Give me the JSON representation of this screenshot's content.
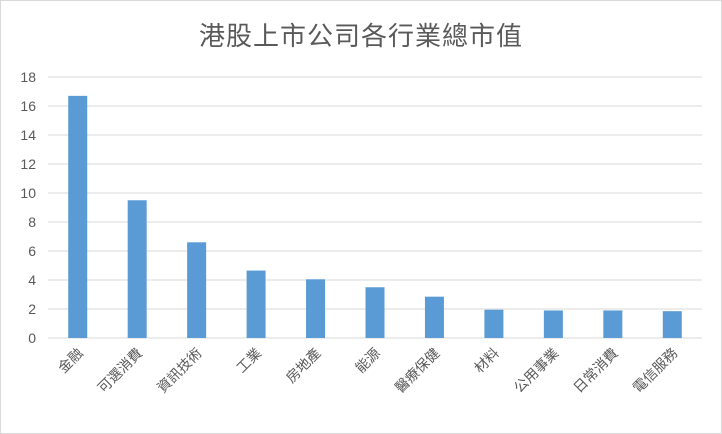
{
  "chart_data": {
    "type": "bar",
    "title": "港股上市公司各行業總市值",
    "categories": [
      "金融",
      "可選消費",
      "資訊技術",
      "工業",
      "房地產",
      "能源",
      "醫療保健",
      "材料",
      "公用事業",
      "日常消費",
      "電信服務"
    ],
    "values": [
      16.7,
      9.5,
      6.6,
      4.65,
      4.05,
      3.5,
      2.85,
      1.95,
      1.9,
      1.9,
      1.85
    ],
    "yticks": [
      0,
      2,
      4,
      6,
      8,
      10,
      12,
      14,
      16,
      18
    ],
    "ylim": [
      0,
      18
    ],
    "xlabel": "",
    "ylabel": "",
    "grid": true,
    "legend": "none",
    "colors": {
      "bar": "#5B9BD5",
      "grid": "#d9d9d9",
      "text": "#595959"
    }
  }
}
